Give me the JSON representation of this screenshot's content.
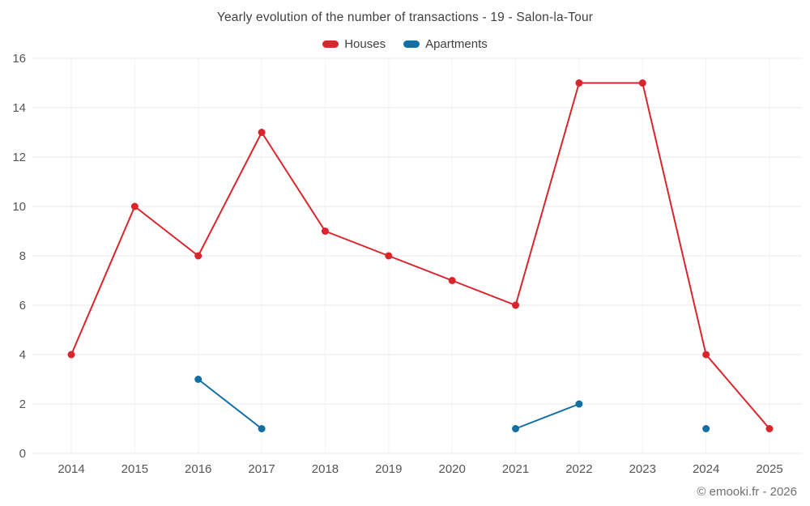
{
  "title": "Yearly evolution of the number of transactions - 19 - Salon-la-Tour",
  "footer": "© emooki.fr - 2026",
  "chart_data": {
    "type": "line",
    "title": "Yearly evolution of the number of transactions - 19 - Salon-la-Tour",
    "categories": [
      "2014",
      "2015",
      "2016",
      "2017",
      "2018",
      "2019",
      "2020",
      "2021",
      "2022",
      "2023",
      "2024",
      "2025"
    ],
    "series": [
      {
        "name": "Houses",
        "color": "#d9252c",
        "values": [
          4,
          10,
          8,
          13,
          9,
          8,
          7,
          6,
          15,
          15,
          4,
          1
        ]
      },
      {
        "name": "Apartments",
        "color": "#1170a3",
        "values": [
          null,
          null,
          3,
          1,
          null,
          null,
          null,
          1,
          2,
          null,
          1,
          null
        ]
      }
    ],
    "xlabel": "",
    "ylabel": "",
    "ylim": [
      0,
      16
    ],
    "ytick_step": 2,
    "yticks": [
      0,
      2,
      4,
      6,
      8,
      10,
      12,
      14,
      16
    ],
    "grid": true,
    "legend_position": "top",
    "grid_color": "#e9e9e9",
    "axis_label_color": "#555555"
  }
}
